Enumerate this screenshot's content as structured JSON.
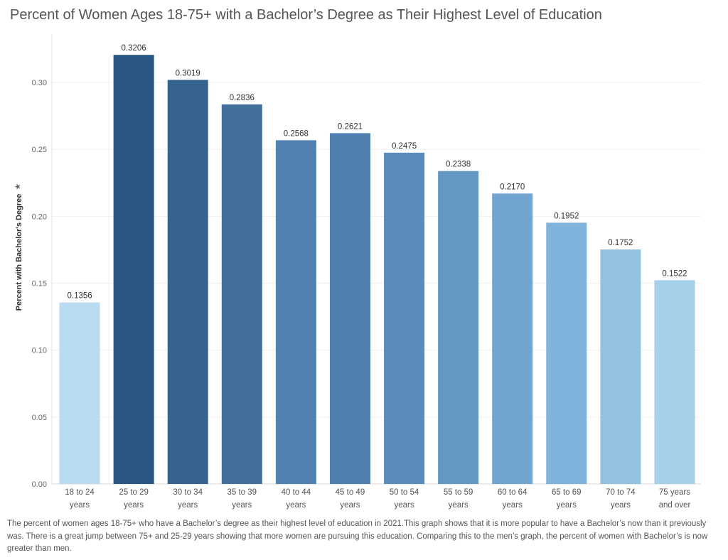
{
  "title": "Percent of Women Ages 18-75+ with a Bachelor’s Degree as Their Highest Level of Education",
  "caption": "The percent of women ages 18-75+ who have a Bachelor’s degree as their highest level of education in 2021.This graph shows that it is more popular to have a Bachelor’s now than it previously was. There is a great jump between 75+ and 25-29 years showing that more women are pursuing this education. Comparing this to the men’s graph, the percent of women with Bachelor’s is now greater than men.",
  "chart_data": {
    "type": "bar",
    "title": "Percent of Women Ages 18-75+ with a Bachelor’s Degree as Their Highest Level of Education",
    "xlabel": "",
    "ylabel": "Percent with Bachelor's Degree",
    "ylim": [
      0,
      0.33
    ],
    "yticks": [
      "0.00",
      "0.05",
      "0.10",
      "0.15",
      "0.20",
      "0.25",
      "0.30"
    ],
    "grid": true,
    "categories": [
      [
        "18 to 24",
        "years"
      ],
      [
        "25 to 29",
        "years"
      ],
      [
        "30 to 34",
        "years"
      ],
      [
        "35 to 39",
        "years"
      ],
      [
        "40 to 44",
        "years"
      ],
      [
        "45 to 49",
        "years"
      ],
      [
        "50 to 54",
        "years"
      ],
      [
        "55 to 59",
        "years"
      ],
      [
        "60 to 64",
        "years"
      ],
      [
        "65 to 69",
        "years"
      ],
      [
        "70 to 74",
        "years"
      ],
      [
        "75 years",
        "and over"
      ]
    ],
    "values": [
      0.1356,
      0.3206,
      0.3019,
      0.2836,
      0.2568,
      0.2621,
      0.2475,
      0.2338,
      0.217,
      0.1952,
      0.1752,
      0.1522
    ],
    "data_labels": [
      "0.1356",
      "0.3206",
      "0.3019",
      "0.2836",
      "0.2568",
      "0.2621",
      "0.2475",
      "0.2338",
      "0.2170",
      "0.1952",
      "0.1752",
      "0.1522"
    ],
    "colors": [
      "#b9dcf0",
      "#2a5783",
      "#36638e",
      "#426f9b",
      "#5081b1",
      "#4e7fae",
      "#5a8bb9",
      "#6597c3",
      "#71a4cf",
      "#80b3dc",
      "#93c2e3",
      "#a6cfe9"
    ]
  }
}
